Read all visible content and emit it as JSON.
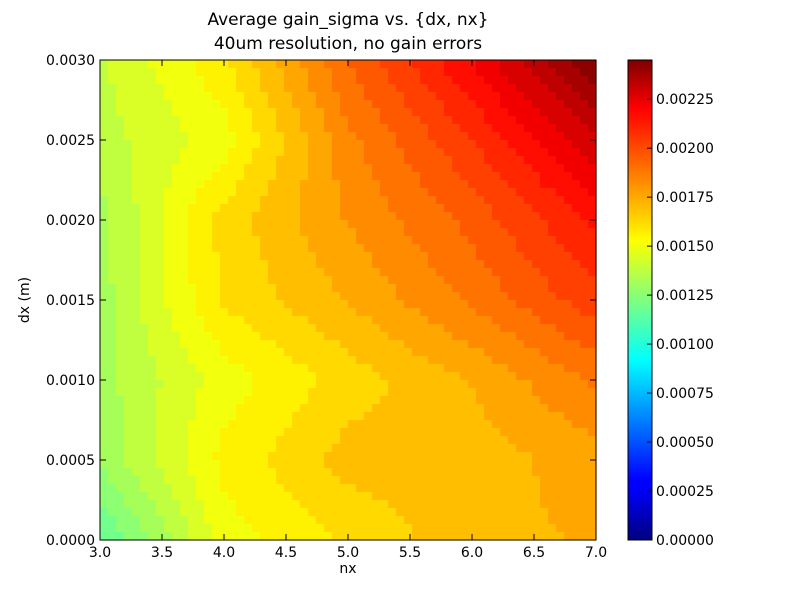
{
  "chart_data": {
    "type": "heatmap",
    "title": "Average gain_sigma vs. {dx, nx}",
    "subtitle": "40um resolution, no gain errors",
    "xlabel": "nx",
    "ylabel": "dx (m)",
    "xlim": [
      3.0,
      7.0
    ],
    "ylim": [
      0.0,
      0.003
    ],
    "x_ticks": [
      "3.0",
      "3.5",
      "4.0",
      "4.5",
      "5.0",
      "5.5",
      "6.0",
      "6.5",
      "7.0"
    ],
    "y_ticks": [
      "0.0000",
      "0.0005",
      "0.0010",
      "0.0015",
      "0.0020",
      "0.0025",
      "0.0030"
    ],
    "colorbar": {
      "min": 0.0,
      "max": 0.00245,
      "ticks": [
        "0.00000",
        "0.00025",
        "0.00050",
        "0.00075",
        "0.00100",
        "0.00125",
        "0.00150",
        "0.00175",
        "0.00200",
        "0.00225"
      ],
      "colormap": "jet"
    },
    "x": [
      3.0,
      4.0,
      5.0,
      6.0,
      7.0
    ],
    "y": [
      0.0,
      0.0005,
      0.001,
      0.0015,
      0.002,
      0.0025,
      0.003
    ],
    "z": [
      [
        0.00115,
        0.0015,
        0.0016,
        0.0017,
        0.00172
      ],
      [
        0.0013,
        0.00155,
        0.00168,
        0.00168,
        0.00175
      ],
      [
        0.00132,
        0.0015,
        0.00162,
        0.00172,
        0.00185
      ],
      [
        0.00132,
        0.0016,
        0.00172,
        0.00185,
        0.002
      ],
      [
        0.00132,
        0.00162,
        0.00178,
        0.00192,
        0.0021
      ],
      [
        0.00138,
        0.0015,
        0.00182,
        0.00202,
        0.00225
      ],
      [
        0.0014,
        0.00158,
        0.0019,
        0.00215,
        0.00245
      ]
    ]
  }
}
